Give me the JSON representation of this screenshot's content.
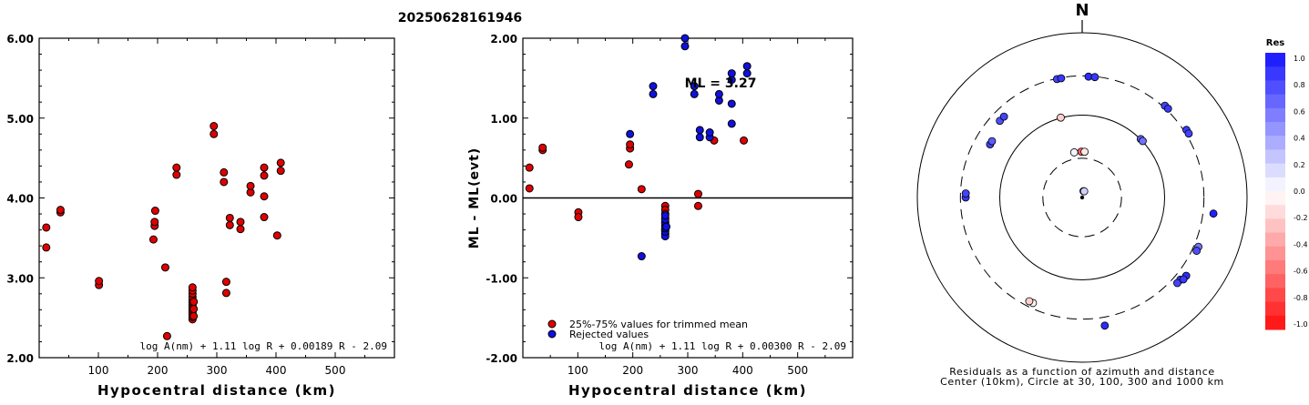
{
  "title": "20250628161946",
  "chart_data": [
    {
      "type": "scatter",
      "xlabel": "Hypocentral distance (km)",
      "ylabel": "ML(IASPEI)",
      "xlim": [
        0,
        600
      ],
      "ylim": [
        2.0,
        6.0
      ],
      "xticks": [
        "100",
        "200",
        "300",
        "400",
        "500"
      ],
      "yticks": [
        "2.00",
        "3.00",
        "4.00",
        "5.00",
        "6.00"
      ],
      "formula": "log A(nm) + 1.11 log R + 0.00189 R - 2.09",
      "marker_color": "#e00000",
      "points": [
        [
          12,
          3.38
        ],
        [
          12,
          3.63
        ],
        [
          36,
          3.82
        ],
        [
          36,
          3.85
        ],
        [
          101,
          2.91
        ],
        [
          101,
          2.96
        ],
        [
          193,
          3.48
        ],
        [
          195,
          3.65
        ],
        [
          195,
          3.7
        ],
        [
          196,
          3.84
        ],
        [
          213,
          3.13
        ],
        [
          216,
          2.27
        ],
        [
          232,
          4.29
        ],
        [
          232,
          4.38
        ],
        [
          259,
          2.48
        ],
        [
          259,
          2.51
        ],
        [
          259,
          2.54
        ],
        [
          259,
          2.57
        ],
        [
          259,
          2.6
        ],
        [
          259,
          2.63
        ],
        [
          259,
          2.66
        ],
        [
          259,
          2.69
        ],
        [
          259,
          2.72
        ],
        [
          259,
          2.76
        ],
        [
          259,
          2.8
        ],
        [
          259,
          2.84
        ],
        [
          259,
          2.88
        ],
        [
          261,
          2.52
        ],
        [
          261,
          2.61
        ],
        [
          261,
          2.7
        ],
        [
          295,
          4.8
        ],
        [
          295,
          4.9
        ],
        [
          312,
          4.2
        ],
        [
          312,
          4.32
        ],
        [
          316,
          2.81
        ],
        [
          316,
          2.95
        ],
        [
          322,
          3.66
        ],
        [
          322,
          3.75
        ],
        [
          340,
          3.61
        ],
        [
          340,
          3.7
        ],
        [
          357,
          4.07
        ],
        [
          357,
          4.15
        ],
        [
          380,
          3.76
        ],
        [
          380,
          4.02
        ],
        [
          380,
          4.28
        ],
        [
          380,
          4.38
        ],
        [
          402,
          3.53
        ],
        [
          408,
          4.34
        ],
        [
          408,
          4.44
        ]
      ]
    },
    {
      "type": "scatter",
      "xlabel": "Hypocentral distance (km)",
      "ylabel": "ML - ML(evt)",
      "xlim": [
        0,
        600
      ],
      "ylim": [
        -2.0,
        2.0
      ],
      "xticks": [
        "100",
        "200",
        "300",
        "400",
        "500"
      ],
      "yticks": [
        "-2.00",
        "-1.00",
        "0.00",
        "1.00",
        "2.00"
      ],
      "annotation": "ML = 3.27",
      "formula": "log A(nm) + 1.11 log R + 0.00300 R - 2.09",
      "legend": [
        {
          "label": "25%-75% values for trimmed mean",
          "color": "#e00000"
        },
        {
          "label": "Rejected values",
          "color": "#1010e0"
        }
      ],
      "series": [
        {
          "name": "25%-75% values for trimmed mean",
          "color": "#e00000",
          "points": [
            [
              12,
              0.12
            ],
            [
              12,
              0.38
            ],
            [
              36,
              0.6
            ],
            [
              36,
              0.63
            ],
            [
              101,
              -0.18
            ],
            [
              101,
              -0.24
            ],
            [
              193,
              0.42
            ],
            [
              195,
              0.62
            ],
            [
              195,
              0.67
            ],
            [
              216,
              0.11
            ],
            [
              259,
              -0.1
            ],
            [
              259,
              -0.15
            ],
            [
              259,
              -0.2
            ],
            [
              259,
              -0.25
            ],
            [
              259,
              -0.3
            ],
            [
              259,
              -0.35
            ],
            [
              259,
              -0.4
            ],
            [
              319,
              0.05
            ],
            [
              319,
              -0.1
            ],
            [
              348,
              0.72
            ],
            [
              402,
              0.72
            ]
          ]
        },
        {
          "name": "Rejected values",
          "color": "#1010e0",
          "points": [
            [
              195,
              0.8
            ],
            [
              216,
              -0.73
            ],
            [
              237,
              1.3
            ],
            [
              237,
              1.4
            ],
            [
              259,
              -0.45
            ],
            [
              259,
              -0.48
            ],
            [
              259,
              -0.42
            ],
            [
              259,
              -0.38
            ],
            [
              259,
              -0.32
            ],
            [
              259,
              -0.27
            ],
            [
              259,
              -0.22
            ],
            [
              261,
              -0.36
            ],
            [
              295,
              1.9
            ],
            [
              295,
              2.0
            ],
            [
              312,
              1.3
            ],
            [
              312,
              1.4
            ],
            [
              322,
              0.76
            ],
            [
              322,
              0.85
            ],
            [
              340,
              0.76
            ],
            [
              340,
              0.82
            ],
            [
              357,
              1.22
            ],
            [
              357,
              1.3
            ],
            [
              380,
              0.93
            ],
            [
              380,
              1.18
            ],
            [
              380,
              1.48
            ],
            [
              380,
              1.56
            ],
            [
              408,
              1.56
            ],
            [
              408,
              1.65
            ]
          ]
        }
      ]
    },
    {
      "type": "scatter",
      "projection": "polar",
      "north_label": "N",
      "caption_line1": "Residuals as a function of azimuth and distance",
      "caption_line2": "Center (10km), Circle at 30, 100, 300 and 1000 km",
      "colorbar": {
        "title": "Res",
        "ticks": [
          "1.0",
          "0.8",
          "0.6",
          "0.4",
          "0.2",
          "0.0",
          "-0.2",
          "-0.4",
          "-0.6",
          "-0.8",
          "-1.0"
        ]
      },
      "points": [
        {
          "az": 12,
          "dist": 12,
          "res": 0.4
        },
        {
          "az": 18,
          "dist": 12,
          "res": 0.2
        },
        {
          "az": 359,
          "dist": 36,
          "res": -0.65
        },
        {
          "az": 3,
          "dist": 36,
          "res": -0.1
        },
        {
          "az": 350,
          "dist": 36,
          "res": 0.05
        },
        {
          "az": 345,
          "dist": 101,
          "res": -0.2
        },
        {
          "az": 45,
          "dist": 101,
          "res": 0.7
        },
        {
          "az": 47,
          "dist": 101,
          "res": 0.6
        },
        {
          "az": 300,
          "dist": 195,
          "res": 0.8
        },
        {
          "az": 302,
          "dist": 195,
          "res": 0.7
        },
        {
          "az": 313,
          "dist": 232,
          "res": 0.75
        },
        {
          "az": 316,
          "dist": 232,
          "res": 0.8
        },
        {
          "az": 270,
          "dist": 259,
          "res": 0.85
        },
        {
          "az": 272,
          "dist": 259,
          "res": 0.8
        },
        {
          "az": 205,
          "dist": 259,
          "res": -0.05
        },
        {
          "az": 207,
          "dist": 259,
          "res": -0.2
        },
        {
          "az": 348,
          "dist": 295,
          "res": 0.8
        },
        {
          "az": 350,
          "dist": 295,
          "res": 0.85
        },
        {
          "az": 3,
          "dist": 295,
          "res": 0.9
        },
        {
          "az": 6,
          "dist": 295,
          "res": 0.85
        },
        {
          "az": 42,
          "dist": 316,
          "res": 0.8
        },
        {
          "az": 44,
          "dist": 316,
          "res": 0.85
        },
        {
          "az": 57,
          "dist": 322,
          "res": 0.85
        },
        {
          "az": 59,
          "dist": 322,
          "res": 0.8
        },
        {
          "az": 113,
          "dist": 340,
          "res": 0.6
        },
        {
          "az": 115,
          "dist": 340,
          "res": 0.75
        },
        {
          "az": 130,
          "dist": 357,
          "res": 0.85
        },
        {
          "az": 132,
          "dist": 357,
          "res": 0.8
        },
        {
          "az": 127,
          "dist": 380,
          "res": 0.9
        },
        {
          "az": 129,
          "dist": 380,
          "res": 0.85
        },
        {
          "az": 170,
          "dist": 380,
          "res": 0.9
        },
        {
          "az": 97,
          "dist": 402,
          "res": 0.95
        }
      ]
    }
  ]
}
